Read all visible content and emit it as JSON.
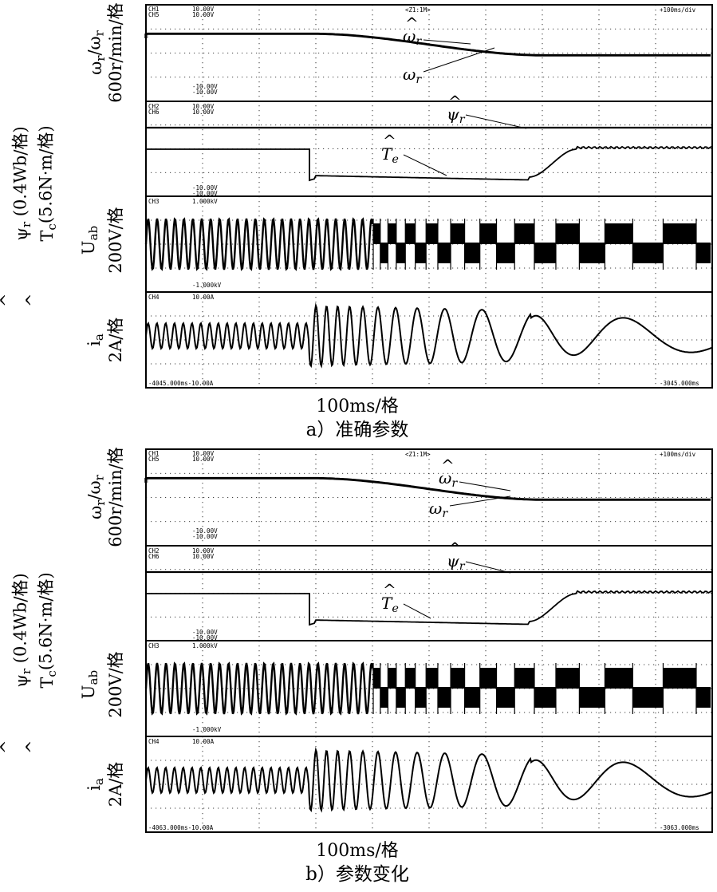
{
  "chart_data": [
    {
      "type": "line",
      "panel": "a",
      "caption": "a）准确参数",
      "xlabel": "100ms/格",
      "x_start_label": "-4045.000ms",
      "x_end_label": "-3045.000ms",
      "top_right_label": "+100ms/div",
      "zoom_label": "Z1:1M",
      "channels": [
        {
          "id": "speed",
          "ylabel": "ω_r/ω̂_r",
          "yunit": "600r/min/格",
          "ch_labels": [
            "CH1",
            "CH5"
          ],
          "scales": [
            "10.00V",
            "10.00V"
          ],
          "offsets": [
            "-10.00V",
            "-10.00V"
          ],
          "marker": "M",
          "annotations": [
            {
              "text": "ω̂_r",
              "sub": "r"
            },
            {
              "text": "ω_r",
              "sub": "r"
            }
          ]
        },
        {
          "id": "flux_torque",
          "ylabel": "ψ̂_r (0.4Wb/格)  T̂_e (5.6N·m/格)",
          "ch_labels": [
            "CH2",
            "CH6"
          ],
          "scales": [
            "10.00V",
            "10.00V"
          ],
          "offsets": [
            "-10.00V",
            "-10.00V"
          ],
          "annotations": [
            {
              "text": "ψ̂_r"
            },
            {
              "text": "T̂_e"
            }
          ]
        },
        {
          "id": "voltage",
          "ylabel": "U_ab",
          "yunit": "200V/格",
          "ch_labels": [
            "CH3"
          ],
          "scales": [
            "1.000kV"
          ],
          "offsets": [
            "-1.000kV"
          ]
        },
        {
          "id": "current",
          "ylabel": "i_a",
          "yunit": "2A/格",
          "ch_labels": [
            "CH4"
          ],
          "scales": [
            "10.00A"
          ],
          "offsets": [
            "-10.00A"
          ]
        }
      ]
    },
    {
      "type": "line",
      "panel": "b",
      "caption": "b）参数变化",
      "xlabel": "100ms/格",
      "x_start_label": "-4063.000ms",
      "x_end_label": "-3063.000ms",
      "top_right_label": "+100ms/div",
      "zoom_label": "Z1:1M",
      "channels": [
        {
          "id": "speed",
          "ylabel": "ω_r/ω̂_r",
          "yunit": "600r/min/格",
          "ch_labels": [
            "CH1",
            "CH5"
          ],
          "scales": [
            "10.00V",
            "10.00V"
          ],
          "offsets": [
            "-10.00V",
            "-10.00V"
          ],
          "marker": "M",
          "annotations": [
            {
              "text": "ω̂_r"
            },
            {
              "text": "ω_r"
            }
          ]
        },
        {
          "id": "flux_torque",
          "ylabel": "ψ̂_r (0.4Wb/格)  T̂_e (5.6N·m/格)",
          "ch_labels": [
            "CH2",
            "CH6"
          ],
          "scales": [
            "10.00V",
            "10.00V"
          ],
          "offsets": [
            "-10.00V",
            "-10.00V"
          ],
          "annotations": [
            {
              "text": "ψ̂_r"
            },
            {
              "text": "T̂_e"
            }
          ]
        },
        {
          "id": "voltage",
          "ylabel": "U_ab",
          "yunit": "200V/格",
          "ch_labels": [
            "CH3"
          ],
          "scales": [
            "1.000kV"
          ],
          "offsets": [
            "-1.000kV"
          ]
        },
        {
          "id": "current",
          "ylabel": "i_a",
          "yunit": "2A/格",
          "ch_labels": [
            "CH4"
          ],
          "scales": [
            "10.00A"
          ],
          "offsets": [
            "-10.00A"
          ]
        }
      ]
    }
  ],
  "labels": {
    "speed_y": "ω",
    "speed_y_sub": "r",
    "speed_y2": "/ω",
    "speed_unit": "600r/min/格",
    "flux_unit": "(0.4Wb/格)",
    "torque_unit": "(5.6N·m/格)",
    "volt_y": "U",
    "volt_y_sub": "ab",
    "volt_unit": "200V/格",
    "cur_y": "i",
    "cur_y_sub": "a",
    "cur_unit": "2A/格",
    "psi": "ψ",
    "psi_sub": "r",
    "te": "T",
    "te_sub": "c",
    "ann_omega": "ω",
    "ann_sub_r": "r",
    "ann_T": "T",
    "ann_sub_e": "e",
    "hat": "^"
  }
}
